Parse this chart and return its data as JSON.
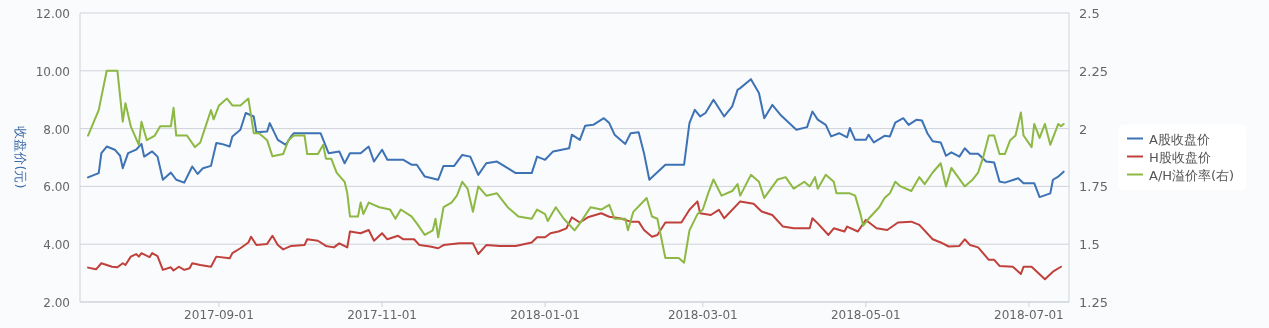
{
  "chart_data": {
    "type": "line",
    "ylabel": "收盘价(元)",
    "legend": "right",
    "grid": "y",
    "xlim": [
      "2017-07-11",
      "2018-07-16"
    ],
    "xticks": [
      "2017-09-01",
      "2017-11-01",
      "2018-01-01",
      "2018-03-01",
      "2018-05-01",
      "2018-07-01"
    ],
    "ylim": [
      2,
      12
    ],
    "yticks": [
      {
        "value": 2,
        "label": "2.00"
      },
      {
        "value": 4,
        "label": "4.00"
      },
      {
        "value": 6,
        "label": "6.00"
      },
      {
        "value": 8,
        "label": "8.00"
      },
      {
        "value": 10,
        "label": "10.00"
      },
      {
        "value": 12,
        "label": "12.00"
      }
    ],
    "y2lim": [
      1.25,
      2.5
    ],
    "y2ticks": [
      1.25,
      1.5,
      1.75,
      2,
      2.25,
      2.5
    ],
    "series": [
      {
        "name": "A股收盘价",
        "color": "#3d72b4",
        "x": [
          "2017-07-14",
          "2017-07-18",
          "2017-07-19",
          "2017-07-21",
          "2017-07-24",
          "2017-07-26",
          "2017-07-27",
          "2017-07-29",
          "2017-08-01",
          "2017-08-03",
          "2017-08-04",
          "2017-08-07",
          "2017-08-09",
          "2017-08-11",
          "2017-08-14",
          "2017-08-16",
          "2017-08-19",
          "2017-08-22",
          "2017-08-24",
          "2017-08-26",
          "2017-08-29",
          "2017-08-31",
          "2017-09-02",
          "2017-09-05",
          "2017-09-06",
          "2017-09-09",
          "2017-09-11",
          "2017-09-14",
          "2017-09-15",
          "2017-09-19",
          "2017-09-20",
          "2017-09-23",
          "2017-09-26",
          "2017-09-28",
          "2017-09-29",
          "2017-10-09",
          "2017-10-12",
          "2017-10-16",
          "2017-10-18",
          "2017-10-20",
          "2017-10-24",
          "2017-10-27",
          "2017-10-29",
          "2017-11-01",
          "2017-11-03",
          "2017-11-09",
          "2017-11-12",
          "2017-11-14",
          "2017-11-17",
          "2017-11-22",
          "2017-11-24",
          "2017-11-28",
          "2017-12-01",
          "2017-12-04",
          "2017-12-07",
          "2017-12-10",
          "2017-12-14",
          "2017-12-18",
          "2017-12-21",
          "2017-12-27",
          "2017-12-29",
          "2018-01-01",
          "2018-01-04",
          "2018-01-10",
          "2018-01-11",
          "2018-01-14",
          "2018-01-16",
          "2018-01-19",
          "2018-01-23",
          "2018-01-25",
          "2018-01-27",
          "2018-01-31",
          "2018-02-02",
          "2018-02-05",
          "2018-02-07",
          "2018-02-09",
          "2018-02-15",
          "2018-02-22",
          "2018-02-24",
          "2018-02-26",
          "2018-02-28",
          "2018-03-02",
          "2018-03-05",
          "2018-03-09",
          "2018-03-12",
          "2018-03-14",
          "2018-03-15",
          "2018-03-19",
          "2018-03-22",
          "2018-03-24",
          "2018-03-27",
          "2018-03-30",
          "2018-04-05",
          "2018-04-09",
          "2018-04-11",
          "2018-04-13",
          "2018-04-16",
          "2018-04-18",
          "2018-04-21",
          "2018-04-24",
          "2018-04-25",
          "2018-04-27",
          "2018-05-01",
          "2018-05-02",
          "2018-05-04",
          "2018-05-08",
          "2018-05-10",
          "2018-05-12",
          "2018-05-15",
          "2018-05-17",
          "2018-05-20",
          "2018-05-22",
          "2018-05-24",
          "2018-05-26",
          "2018-05-29",
          "2018-05-31",
          "2018-06-02",
          "2018-06-05",
          "2018-06-07",
          "2018-06-09",
          "2018-06-12",
          "2018-06-15",
          "2018-06-18",
          "2018-06-20",
          "2018-06-22",
          "2018-06-27",
          "2018-06-29",
          "2018-07-03",
          "2018-07-05",
          "2018-07-09",
          "2018-07-10",
          "2018-07-12",
          "2018-07-14"
        ],
        "values": [
          6.31,
          6.46,
          7.15,
          7.38,
          7.27,
          7.06,
          6.63,
          7.15,
          7.27,
          7.47,
          7.03,
          7.21,
          7.03,
          6.23,
          6.48,
          6.23,
          6.13,
          6.69,
          6.43,
          6.63,
          6.71,
          7.5,
          7.47,
          7.38,
          7.73,
          7.96,
          8.54,
          8.42,
          7.87,
          7.9,
          8.19,
          7.61,
          7.44,
          7.73,
          7.84,
          7.84,
          7.15,
          7.21,
          6.8,
          7.15,
          7.15,
          7.38,
          6.86,
          7.27,
          6.92,
          6.92,
          6.75,
          6.75,
          6.34,
          6.23,
          6.71,
          6.71,
          7.09,
          7.03,
          6.4,
          6.8,
          6.86,
          6.63,
          6.46,
          6.46,
          7.03,
          6.92,
          7.21,
          7.32,
          7.79,
          7.61,
          8.1,
          8.13,
          8.36,
          8.19,
          7.79,
          7.47,
          7.84,
          7.87,
          7.15,
          6.23,
          6.75,
          6.75,
          8.19,
          8.65,
          8.42,
          8.54,
          9.0,
          8.42,
          8.77,
          9.34,
          9.4,
          9.71,
          9.23,
          8.36,
          8.82,
          8.48,
          7.96,
          8.05,
          8.59,
          8.31,
          8.13,
          7.73,
          7.84,
          7.7,
          8.02,
          7.61,
          7.61,
          7.79,
          7.52,
          7.75,
          7.73,
          8.21,
          8.36,
          8.13,
          8.31,
          8.28,
          7.84,
          7.56,
          7.52,
          7.06,
          7.18,
          7.03,
          7.32,
          7.13,
          7.13,
          6.86,
          6.83,
          6.17,
          6.13,
          6.28,
          6.11,
          6.11,
          5.63,
          5.76,
          6.23,
          6.34,
          6.51
        ]
      },
      {
        "name": "H股收盘价",
        "color": "#c0403b",
        "x": [
          "2017-07-14",
          "2017-07-17",
          "2017-07-19",
          "2017-07-23",
          "2017-07-25",
          "2017-07-27",
          "2017-07-28",
          "2017-07-30",
          "2017-08-01",
          "2017-08-02",
          "2017-08-03",
          "2017-08-06",
          "2017-08-07",
          "2017-08-09",
          "2017-08-11",
          "2017-08-14",
          "2017-08-15",
          "2017-08-17",
          "2017-08-19",
          "2017-08-21",
          "2017-08-22",
          "2017-08-25",
          "2017-08-29",
          "2017-08-31",
          "2017-09-05",
          "2017-09-06",
          "2017-09-09",
          "2017-09-12",
          "2017-09-13",
          "2017-09-15",
          "2017-09-19",
          "2017-09-21",
          "2017-09-23",
          "2017-09-25",
          "2017-09-28",
          "2017-10-03",
          "2017-10-04",
          "2017-10-08",
          "2017-10-11",
          "2017-10-14",
          "2017-10-16",
          "2017-10-19",
          "2017-10-20",
          "2017-10-24",
          "2017-10-27",
          "2017-10-29",
          "2017-11-01",
          "2017-11-03",
          "2017-11-07",
          "2017-11-09",
          "2017-11-13",
          "2017-11-15",
          "2017-11-19",
          "2017-11-22",
          "2017-11-24",
          "2017-11-30",
          "2017-12-05",
          "2017-12-07",
          "2017-12-10",
          "2017-12-15",
          "2017-12-21",
          "2017-12-27",
          "2017-12-29",
          "2018-01-01",
          "2018-01-03",
          "2018-01-06",
          "2018-01-09",
          "2018-01-11",
          "2018-01-14",
          "2018-01-17",
          "2018-01-22",
          "2018-01-25",
          "2018-01-29",
          "2018-02-02",
          "2018-02-05",
          "2018-02-07",
          "2018-02-10",
          "2018-02-12",
          "2018-02-15",
          "2018-02-21",
          "2018-02-24",
          "2018-02-27",
          "2018-02-28",
          "2018-03-04",
          "2018-03-07",
          "2018-03-09",
          "2018-03-15",
          "2018-03-20",
          "2018-03-23",
          "2018-03-27",
          "2018-03-31",
          "2018-04-04",
          "2018-04-10",
          "2018-04-11",
          "2018-04-13",
          "2018-04-17",
          "2018-04-19",
          "2018-04-23",
          "2018-04-24",
          "2018-04-28",
          "2018-05-01",
          "2018-05-05",
          "2018-05-09",
          "2018-05-13",
          "2018-05-18",
          "2018-05-21",
          "2018-05-26",
          "2018-05-29",
          "2018-06-01",
          "2018-06-05",
          "2018-06-07",
          "2018-06-09",
          "2018-06-12",
          "2018-06-16",
          "2018-06-18",
          "2018-06-20",
          "2018-06-25",
          "2018-06-28",
          "2018-06-29",
          "2018-07-02",
          "2018-07-07",
          "2018-07-10",
          "2018-07-13"
        ],
        "values": [
          3.19,
          3.13,
          3.34,
          3.22,
          3.2,
          3.34,
          3.28,
          3.57,
          3.66,
          3.57,
          3.69,
          3.55,
          3.69,
          3.59,
          3.11,
          3.2,
          3.09,
          3.22,
          3.11,
          3.17,
          3.34,
          3.28,
          3.22,
          3.57,
          3.51,
          3.69,
          3.86,
          4.06,
          4.26,
          3.97,
          4.01,
          4.29,
          3.97,
          3.82,
          3.94,
          3.97,
          4.17,
          4.12,
          3.94,
          3.89,
          4.03,
          3.89,
          4.44,
          4.38,
          4.49,
          4.12,
          4.38,
          4.17,
          4.29,
          4.17,
          4.17,
          3.97,
          3.92,
          3.86,
          3.97,
          4.03,
          4.03,
          3.66,
          3.97,
          3.94,
          3.94,
          4.06,
          4.24,
          4.24,
          4.38,
          4.44,
          4.55,
          4.93,
          4.75,
          4.93,
          5.07,
          4.95,
          4.9,
          4.78,
          4.78,
          4.49,
          4.26,
          4.32,
          4.75,
          4.75,
          5.19,
          5.48,
          5.07,
          5.01,
          5.19,
          4.9,
          5.48,
          5.4,
          5.13,
          5.01,
          4.61,
          4.55,
          4.55,
          4.9,
          4.72,
          4.32,
          4.55,
          4.44,
          4.61,
          4.44,
          4.84,
          4.55,
          4.49,
          4.75,
          4.78,
          4.67,
          4.17,
          4.06,
          3.92,
          3.94,
          4.17,
          3.97,
          3.89,
          3.46,
          3.46,
          3.25,
          3.22,
          2.97,
          3.22,
          3.22,
          2.79,
          3.05,
          3.22
        ]
      },
      {
        "name": "A/H溢价率(右)",
        "color": "#8cb843",
        "axis": "y2",
        "x": [
          "2017-07-14",
          "2017-07-18",
          "2017-07-21",
          "2017-07-25",
          "2017-07-27",
          "2017-07-28",
          "2017-07-30",
          "2017-08-02",
          "2017-08-03",
          "2017-08-05",
          "2017-08-08",
          "2017-08-10",
          "2017-08-14",
          "2017-08-15",
          "2017-08-16",
          "2017-08-20",
          "2017-08-23",
          "2017-08-25",
          "2017-08-29",
          "2017-08-30",
          "2017-09-01",
          "2017-09-04",
          "2017-09-06",
          "2017-09-09",
          "2017-09-12",
          "2017-09-14",
          "2017-09-16",
          "2017-09-19",
          "2017-09-21",
          "2017-09-25",
          "2017-09-27",
          "2017-09-29",
          "2017-10-03",
          "2017-10-04",
          "2017-10-08",
          "2017-10-10",
          "2017-10-11",
          "2017-10-13",
          "2017-10-15",
          "2017-10-18",
          "2017-10-19",
          "2017-10-20",
          "2017-10-23",
          "2017-10-24",
          "2017-10-25",
          "2017-10-27",
          "2017-10-31",
          "2017-11-04",
          "2017-11-06",
          "2017-11-08",
          "2017-11-12",
          "2017-11-14",
          "2017-11-17",
          "2017-11-20",
          "2017-11-21",
          "2017-11-22",
          "2017-11-24",
          "2017-11-27",
          "2017-11-29",
          "2017-12-01",
          "2017-12-03",
          "2017-12-05",
          "2017-12-07",
          "2017-12-10",
          "2017-12-14",
          "2017-12-18",
          "2017-12-22",
          "2017-12-27",
          "2017-12-29",
          "2018-01-01",
          "2018-01-02",
          "2018-01-05",
          "2018-01-08",
          "2018-01-12",
          "2018-01-14",
          "2018-01-18",
          "2018-01-22",
          "2018-01-25",
          "2018-01-27",
          "2018-01-31",
          "2018-02-01",
          "2018-02-03",
          "2018-02-08",
          "2018-02-10",
          "2018-02-12",
          "2018-02-15",
          "2018-02-20",
          "2018-02-22",
          "2018-02-24",
          "2018-02-27",
          "2018-03-01",
          "2018-03-03",
          "2018-03-05",
          "2018-03-08",
          "2018-03-12",
          "2018-03-14",
          "2018-03-15",
          "2018-03-19",
          "2018-03-22",
          "2018-03-24",
          "2018-03-29",
          "2018-04-01",
          "2018-04-04",
          "2018-04-08",
          "2018-04-10",
          "2018-04-12",
          "2018-04-13",
          "2018-04-16",
          "2018-04-19",
          "2018-04-20",
          "2018-04-25",
          "2018-04-27",
          "2018-04-29",
          "2018-04-30",
          "2018-05-02",
          "2018-05-06",
          "2018-05-08",
          "2018-05-10",
          "2018-05-12",
          "2018-05-14",
          "2018-05-18",
          "2018-05-21",
          "2018-05-23",
          "2018-05-26",
          "2018-05-29",
          "2018-05-31",
          "2018-06-02",
          "2018-06-07",
          "2018-06-10",
          "2018-06-12",
          "2018-06-14",
          "2018-06-16",
          "2018-06-18",
          "2018-06-20",
          "2018-06-22",
          "2018-06-24",
          "2018-06-26",
          "2018-06-28",
          "2018-06-29",
          "2018-07-02",
          "2018-07-03",
          "2018-07-05",
          "2018-07-07",
          "2018-07-09",
          "2018-07-12",
          "2018-07-13",
          "2018-07-14"
        ],
        "values": [
          1.97,
          2.08,
          2.25,
          2.25,
          2.03,
          2.11,
          2.01,
          1.93,
          2.03,
          1.95,
          1.97,
          2.01,
          2.01,
          2.09,
          1.97,
          1.97,
          1.92,
          1.94,
          2.08,
          2.04,
          2.1,
          2.13,
          2.1,
          2.1,
          2.13,
          1.98,
          1.98,
          1.95,
          1.88,
          1.89,
          1.95,
          1.97,
          1.97,
          1.89,
          1.89,
          1.93,
          1.87,
          1.87,
          1.81,
          1.77,
          1.72,
          1.62,
          1.62,
          1.68,
          1.63,
          1.68,
          1.66,
          1.65,
          1.61,
          1.65,
          1.62,
          1.59,
          1.54,
          1.56,
          1.61,
          1.53,
          1.66,
          1.68,
          1.71,
          1.77,
          1.74,
          1.64,
          1.75,
          1.71,
          1.72,
          1.66,
          1.62,
          1.61,
          1.65,
          1.63,
          1.6,
          1.66,
          1.61,
          1.56,
          1.59,
          1.66,
          1.65,
          1.67,
          1.61,
          1.61,
          1.56,
          1.64,
          1.7,
          1.62,
          1.61,
          1.44,
          1.44,
          1.42,
          1.56,
          1.63,
          1.65,
          1.72,
          1.78,
          1.71,
          1.73,
          1.76,
          1.71,
          1.8,
          1.77,
          1.7,
          1.78,
          1.79,
          1.74,
          1.77,
          1.75,
          1.79,
          1.74,
          1.8,
          1.77,
          1.72,
          1.72,
          1.71,
          1.63,
          1.58,
          1.61,
          1.66,
          1.7,
          1.72,
          1.77,
          1.75,
          1.73,
          1.79,
          1.76,
          1.81,
          1.85,
          1.75,
          1.83,
          1.75,
          1.78,
          1.81,
          1.88,
          1.97,
          1.97,
          1.89,
          1.89,
          1.95,
          1.97,
          2.07,
          1.97,
          1.92,
          2.02,
          1.96,
          2.02,
          1.93,
          2.02,
          2.01,
          2.02
        ]
      }
    ]
  }
}
